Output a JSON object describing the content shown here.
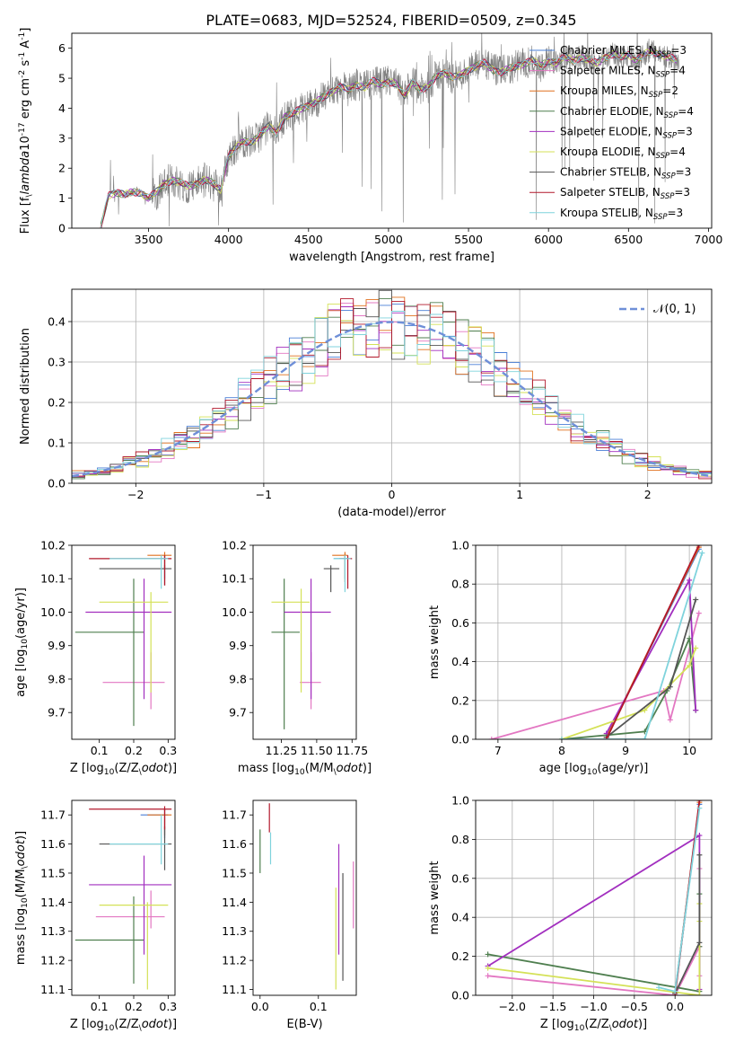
{
  "figure": {
    "title": "PLATE=0683, MJD=52524, FIBERID=0509, z=0.345"
  },
  "colors": {
    "Chabrier MILES": "#4a7fd6",
    "Salpeter MILES": "#e377c2",
    "Kroupa MILES": "#e0711f",
    "Chabrier ELODIE": "#4f7f4f",
    "Salpeter ELODIE": "#a22fbf",
    "Kroupa ELODIE": "#d4e157",
    "Chabrier STELIB": "#555555",
    "Salpeter STELIB": "#b2182b",
    "Kroupa STELIB": "#7fd3dc",
    "data": "#808080",
    "normal": "#6f8fd8",
    "grid": "#b0b0b0"
  },
  "chart_data": [
    {
      "id": "spectrum",
      "type": "line",
      "xlabel": "wavelength [Angstrom, rest frame]",
      "ylabel": "Flux [f$_\\lambda$10$^{-17}$ erg cm$^{-2}$ s$^{-1}$ A$^{-1}$]",
      "xlim": [
        3020,
        7020
      ],
      "ylim": [
        0,
        6.5
      ],
      "xticks": [
        3500,
        4000,
        4500,
        5000,
        5500,
        6000,
        6500,
        7000
      ],
      "yticks": [
        0,
        1,
        2,
        3,
        4,
        5,
        6
      ],
      "grid": false,
      "legend_position": "top-right",
      "legend": [
        {
          "label": "Chabrier MILES, N",
          "sub": "SSP",
          "suffix": "=3",
          "series": "Chabrier MILES"
        },
        {
          "label": "Salpeter MILES, N",
          "sub": "SSP",
          "suffix": "=4",
          "series": "Salpeter MILES"
        },
        {
          "label": "Kroupa MILES, N",
          "sub": "SSP",
          "suffix": "=2",
          "series": "Kroupa MILES"
        },
        {
          "label": "Chabrier ELODIE, N",
          "sub": "SSP",
          "suffix": "=4",
          "series": "Chabrier ELODIE"
        },
        {
          "label": "Salpeter ELODIE, N",
          "sub": "SSP",
          "suffix": "=3",
          "series": "Salpeter ELODIE"
        },
        {
          "label": "Kroupa ELODIE, N",
          "sub": "SSP",
          "suffix": "=4",
          "series": "Kroupa ELODIE"
        },
        {
          "label": "Chabrier STELIB, N",
          "sub": "SSP",
          "suffix": "=3",
          "series": "Chabrier STELIB"
        },
        {
          "label": "Salpeter STELIB, N",
          "sub": "SSP",
          "suffix": "=3",
          "series": "Salpeter STELIB"
        },
        {
          "label": "Kroupa STELIB, N",
          "sub": "SSP",
          "suffix": "=3",
          "series": "Kroupa STELIB"
        }
      ],
      "data_series": {
        "x": [
          3200,
          3250,
          3300,
          3350,
          3400,
          3450,
          3500,
          3550,
          3600,
          3650,
          3700,
          3750,
          3800,
          3850,
          3900,
          3950,
          4000,
          4050,
          4100,
          4150,
          4200,
          4250,
          4300,
          4350,
          4400,
          4450,
          4500,
          4550,
          4600,
          4650,
          4700,
          4750,
          4800,
          4850,
          4900,
          4950,
          5000,
          5050,
          5100,
          5150,
          5200,
          5250,
          5300,
          5350,
          5400,
          5450,
          5500,
          5550,
          5600,
          5650,
          5700,
          5750,
          5800,
          5850,
          5900,
          5950,
          6000,
          6050,
          6100,
          6150,
          6200,
          6250,
          6300,
          6350,
          6400,
          6450,
          6500,
          6550,
          6600,
          6650,
          6700,
          6750,
          6800
        ],
        "y": [
          0.0,
          1.1,
          1.2,
          1.1,
          1.2,
          1.2,
          1.0,
          1.2,
          1.5,
          1.6,
          1.5,
          1.4,
          1.5,
          1.6,
          1.5,
          1.3,
          2.4,
          2.7,
          2.9,
          2.9,
          3.1,
          3.4,
          3.2,
          3.7,
          3.8,
          4.0,
          4.1,
          4.2,
          4.4,
          4.6,
          4.7,
          4.6,
          4.8,
          4.7,
          4.9,
          4.8,
          4.9,
          4.8,
          4.4,
          4.9,
          4.6,
          4.7,
          5.1,
          5.2,
          5.0,
          5.1,
          5.3,
          5.4,
          5.5,
          5.3,
          5.2,
          5.3,
          5.4,
          5.5,
          5.6,
          5.4,
          5.6,
          5.5,
          5.7,
          5.6,
          5.7,
          5.6,
          5.5,
          5.7,
          5.8,
          5.7,
          5.8,
          5.6,
          5.8,
          5.9,
          5.8,
          5.7,
          5.6
        ]
      }
    },
    {
      "id": "residuals",
      "type": "histogram",
      "xlabel": "(data-model)/error",
      "ylabel": "Normed distribution",
      "xlim": [
        -2.5,
        2.5
      ],
      "ylim": [
        0,
        0.48
      ],
      "xticks": [
        -2,
        -1,
        0,
        1,
        2
      ],
      "yticks": [
        0.0,
        0.1,
        0.2,
        0.3,
        0.4
      ],
      "grid": true,
      "legend_position": "top-right",
      "legend": [
        {
          "label": "𝒩(0, 1)",
          "series": "normal"
        }
      ],
      "bin_width": 0.1
    },
    {
      "id": "age_vs_Z",
      "type": "errorbar",
      "xlabel": "Z [log$_{10}$(Z/Z$_\\odot$)]",
      "ylabel": "age  [log$_{10}$(age/yr)]",
      "xlim": [
        0.02,
        0.32
      ],
      "ylim": [
        9.62,
        10.2
      ],
      "xticks": [
        0.1,
        0.2,
        0.3
      ],
      "yticks": [
        9.7,
        9.8,
        9.9,
        10.0,
        10.1,
        10.2
      ],
      "points": [
        {
          "series": "Chabrier MILES",
          "x": 0.29,
          "y": 10.16,
          "xlo": 0.28,
          "xhi": 0.3,
          "ylo": 10.1,
          "yhi": 10.17
        },
        {
          "series": "Salpeter MILES",
          "x": 0.25,
          "y": 9.79,
          "xlo": 0.11,
          "xhi": 0.29,
          "ylo": 9.71,
          "yhi": 9.88
        },
        {
          "series": "Kroupa MILES",
          "x": 0.29,
          "y": 10.17,
          "xlo": 0.24,
          "xhi": 0.31,
          "ylo": 10.13,
          "yhi": 10.18
        },
        {
          "series": "Chabrier ELODIE",
          "x": 0.2,
          "y": 9.94,
          "xlo": 0.03,
          "xhi": 0.23,
          "ylo": 9.66,
          "yhi": 10.1
        },
        {
          "series": "Salpeter ELODIE",
          "x": 0.23,
          "y": 10.0,
          "xlo": 0.06,
          "xhi": 0.31,
          "ylo": 9.74,
          "yhi": 10.1
        },
        {
          "series": "Kroupa ELODIE",
          "x": 0.25,
          "y": 10.03,
          "xlo": 0.1,
          "xhi": 0.3,
          "ylo": 9.76,
          "yhi": 10.06
        },
        {
          "series": "Chabrier STELIB",
          "x": 0.29,
          "y": 10.13,
          "xlo": 0.1,
          "xhi": 0.31,
          "ylo": 10.08,
          "yhi": 10.14
        },
        {
          "series": "Salpeter STELIB",
          "x": 0.29,
          "y": 10.16,
          "xlo": 0.07,
          "xhi": 0.31,
          "ylo": 10.08,
          "yhi": 10.17
        },
        {
          "series": "Kroupa STELIB",
          "x": 0.28,
          "y": 10.16,
          "xlo": 0.13,
          "xhi": 0.3,
          "ylo": 10.07,
          "yhi": 10.17
        }
      ]
    },
    {
      "id": "age_vs_mass",
      "type": "errorbar",
      "xlabel": "mass [log$_{10}$(M/M$_\\odot$)]",
      "ylabel": "",
      "xlim": [
        11.05,
        11.78
      ],
      "ylim": [
        9.62,
        10.2
      ],
      "xticks": [
        11.25,
        11.5,
        11.75
      ],
      "yticks": [
        9.7,
        9.8,
        9.9,
        10.0,
        10.1,
        10.2
      ],
      "points": [
        {
          "series": "Chabrier MILES",
          "x": 11.7,
          "y": 10.16,
          "xlo": 11.62,
          "xhi": 11.72,
          "ylo": 10.1,
          "yhi": 10.17
        },
        {
          "series": "Salpeter MILES",
          "x": 11.46,
          "y": 9.79,
          "xlo": 11.38,
          "xhi": 11.53,
          "ylo": 9.71,
          "yhi": 9.88
        },
        {
          "series": "Kroupa MILES",
          "x": 11.7,
          "y": 10.17,
          "xlo": 11.61,
          "xhi": 11.72,
          "ylo": 10.09,
          "yhi": 10.18
        },
        {
          "series": "Chabrier ELODIE",
          "x": 11.27,
          "y": 9.94,
          "xlo": 11.18,
          "xhi": 11.38,
          "ylo": 9.65,
          "yhi": 10.1
        },
        {
          "series": "Salpeter ELODIE",
          "x": 11.46,
          "y": 10.0,
          "xlo": 11.27,
          "xhi": 11.6,
          "ylo": 9.74,
          "yhi": 10.1
        },
        {
          "series": "Kroupa ELODIE",
          "x": 11.39,
          "y": 10.03,
          "xlo": 11.18,
          "xhi": 11.45,
          "ylo": 9.76,
          "yhi": 10.07
        },
        {
          "series": "Chabrier STELIB",
          "x": 11.6,
          "y": 10.13,
          "xlo": 11.55,
          "xhi": 11.66,
          "ylo": 10.06,
          "yhi": 10.14
        },
        {
          "series": "Salpeter STELIB",
          "x": 11.72,
          "y": 10.16,
          "xlo": 11.66,
          "xhi": 11.75,
          "ylo": 10.07,
          "yhi": 10.17
        },
        {
          "series": "Kroupa STELIB",
          "x": 11.7,
          "y": 10.16,
          "xlo": 11.62,
          "xhi": 11.74,
          "ylo": 10.06,
          "yhi": 10.17
        }
      ]
    },
    {
      "id": "mass_weight_vs_age",
      "type": "line",
      "xlabel": "age  [log$_{10}$(age/yr)]",
      "ylabel": "mass weight",
      "xlim": [
        6.65,
        10.35
      ],
      "ylim": [
        0,
        1
      ],
      "xticks": [
        7,
        8,
        9,
        10
      ],
      "yticks": [
        0.0,
        0.2,
        0.4,
        0.6,
        0.8,
        1.0
      ],
      "grid": true,
      "series": [
        {
          "name": "Chabrier MILES",
          "x": [
            8.7,
            10.15
          ],
          "y": [
            0.01,
            0.98
          ]
        },
        {
          "name": "Salpeter MILES",
          "x": [
            6.9,
            9.6,
            9.7,
            10.15
          ],
          "y": [
            0.0,
            0.25,
            0.1,
            0.65
          ]
        },
        {
          "name": "Kroupa MILES",
          "x": [
            8.7,
            10.15
          ],
          "y": [
            0.01,
            0.99
          ]
        },
        {
          "name": "Chabrier ELODIE",
          "x": [
            8.0,
            9.3,
            9.65,
            10.0,
            10.1
          ],
          "y": [
            0.0,
            0.04,
            0.25,
            0.52,
            0.15
          ]
        },
        {
          "name": "Salpeter ELODIE",
          "x": [
            8.7,
            10.0,
            10.1
          ],
          "y": [
            0.03,
            0.82,
            0.15
          ]
        },
        {
          "name": "Kroupa ELODIE",
          "x": [
            8.0,
            9.3,
            10.0,
            10.1
          ],
          "y": [
            0.0,
            0.15,
            0.38,
            0.47
          ]
        },
        {
          "name": "Chabrier STELIB",
          "x": [
            8.7,
            9.7,
            10.1
          ],
          "y": [
            0.01,
            0.27,
            0.72
          ]
        },
        {
          "name": "Salpeter STELIB",
          "x": [
            8.7,
            10.15
          ],
          "y": [
            0.0,
            1.0
          ]
        },
        {
          "name": "Kroupa STELIB",
          "x": [
            8.0,
            9.3,
            10.2
          ],
          "y": [
            0.0,
            0.0,
            0.96
          ]
        }
      ]
    },
    {
      "id": "mass_vs_Z",
      "type": "errorbar",
      "xlabel": "Z [log$_{10}$(Z/Z$_\\odot$)]",
      "ylabel": "mass [log$_{10}$(M/M$_\\odot$)]",
      "xlim": [
        0.02,
        0.32
      ],
      "ylim": [
        11.08,
        11.75
      ],
      "xticks": [
        0.1,
        0.2,
        0.3
      ],
      "yticks": [
        11.1,
        11.2,
        11.3,
        11.4,
        11.5,
        11.6,
        11.7
      ],
      "points": [
        {
          "series": "Chabrier MILES",
          "x": 0.29,
          "y": 11.7,
          "xlo": 0.22,
          "xhi": 0.3,
          "ylo": 11.62,
          "yhi": 11.72
        },
        {
          "series": "Salpeter MILES",
          "x": 0.25,
          "y": 11.35,
          "xlo": 0.09,
          "xhi": 0.29,
          "ylo": 11.31,
          "yhi": 11.44
        },
        {
          "series": "Kroupa MILES",
          "x": 0.29,
          "y": 11.7,
          "xlo": 0.24,
          "xhi": 0.31,
          "ylo": 11.63,
          "yhi": 11.72
        },
        {
          "series": "Chabrier ELODIE",
          "x": 0.2,
          "y": 11.27,
          "xlo": 0.03,
          "xhi": 0.23,
          "ylo": 11.12,
          "yhi": 11.42
        },
        {
          "series": "Salpeter ELODIE",
          "x": 0.23,
          "y": 11.46,
          "xlo": 0.07,
          "xhi": 0.31,
          "ylo": 11.22,
          "yhi": 11.56
        },
        {
          "series": "Kroupa ELODIE",
          "x": 0.24,
          "y": 11.39,
          "xlo": 0.1,
          "xhi": 0.3,
          "ylo": 11.1,
          "yhi": 11.4
        },
        {
          "series": "Chabrier STELIB",
          "x": 0.29,
          "y": 11.6,
          "xlo": 0.1,
          "xhi": 0.31,
          "ylo": 11.51,
          "yhi": 11.66
        },
        {
          "series": "Salpeter STELIB",
          "x": 0.29,
          "y": 11.72,
          "xlo": 0.07,
          "xhi": 0.31,
          "ylo": 11.65,
          "yhi": 11.73
        },
        {
          "series": "Kroupa STELIB",
          "x": 0.28,
          "y": 11.6,
          "xlo": 0.13,
          "xhi": 0.3,
          "ylo": 11.53,
          "yhi": 11.7
        }
      ]
    },
    {
      "id": "mass_vs_ebv",
      "type": "errorbar",
      "xlabel": "E(B-V)",
      "ylabel": "",
      "xlim": [
        -0.012,
        0.165
      ],
      "ylim": [
        11.08,
        11.75
      ],
      "xticks": [
        0.0,
        0.1
      ],
      "yticks": [
        11.1,
        11.2,
        11.3,
        11.4,
        11.5,
        11.6,
        11.7
      ],
      "points": [
        {
          "series": "Salpeter MILES",
          "x": 0.16,
          "y": 11.4,
          "ylo": 11.31,
          "yhi": 11.54
        },
        {
          "series": "Chabrier ELODIE",
          "x": 0.0,
          "y": 11.55,
          "ylo": 11.5,
          "yhi": 11.65
        },
        {
          "series": "Salpeter ELODIE",
          "x": 0.135,
          "y": 11.46,
          "ylo": 11.22,
          "yhi": 11.6
        },
        {
          "series": "Kroupa ELODIE",
          "x": 0.13,
          "y": 11.3,
          "ylo": 11.1,
          "yhi": 11.45
        },
        {
          "series": "Chabrier STELIB",
          "x": 0.142,
          "y": 11.38,
          "ylo": 11.13,
          "yhi": 11.5
        },
        {
          "series": "Salpeter STELIB",
          "x": 0.016,
          "y": 11.68,
          "ylo": 11.64,
          "yhi": 11.74
        },
        {
          "series": "Kroupa STELIB",
          "x": 0.018,
          "y": 11.58,
          "ylo": 11.53,
          "yhi": 11.64
        }
      ]
    },
    {
      "id": "mass_weight_vs_Z",
      "type": "line",
      "xlabel": "Z [log$_{10}$(Z/Z$_\\odot$)]",
      "ylabel": "mass weight",
      "xlim": [
        -2.45,
        0.45
      ],
      "ylim": [
        0,
        1
      ],
      "xticks": [
        -2.0,
        -1.5,
        -1.0,
        -0.5,
        0.0
      ],
      "yticks": [
        0.0,
        0.2,
        0.4,
        0.6,
        0.8,
        1.0
      ],
      "grid": true,
      "series": [
        {
          "name": "Chabrier MILES",
          "x": [
            0.0,
            0.3
          ],
          "y": [
            0.01,
            0.98
          ]
        },
        {
          "name": "Salpeter MILES",
          "x": [
            -2.3,
            0.0,
            0.3,
            0.3,
            0.3
          ],
          "y": [
            0.1,
            0.0,
            0.25,
            0.65,
            0.1
          ]
        },
        {
          "name": "Kroupa MILES",
          "x": [
            0.0,
            0.3
          ],
          "y": [
            0.01,
            0.99
          ]
        },
        {
          "name": "Chabrier ELODIE",
          "x": [
            -2.3,
            0.3,
            0.3,
            0.3
          ],
          "y": [
            0.21,
            0.02,
            0.25,
            0.52
          ]
        },
        {
          "name": "Salpeter ELODIE",
          "x": [
            -2.3,
            0.3,
            0.3
          ],
          "y": [
            0.15,
            0.82,
            0.03
          ]
        },
        {
          "name": "Kroupa ELODIE",
          "x": [
            -2.3,
            0.3,
            0.3,
            0.3
          ],
          "y": [
            0.14,
            0.0,
            0.38,
            0.47
          ]
        },
        {
          "name": "Chabrier STELIB",
          "x": [
            0.0,
            0.3,
            0.3
          ],
          "y": [
            0.01,
            0.27,
            0.72
          ]
        },
        {
          "name": "Salpeter STELIB",
          "x": [
            0.0,
            0.3
          ],
          "y": [
            0.0,
            1.0
          ]
        },
        {
          "name": "Kroupa STELIB",
          "x": [
            -0.2,
            0.0,
            0.3
          ],
          "y": [
            0.04,
            0.02,
            0.96
          ]
        }
      ]
    }
  ]
}
